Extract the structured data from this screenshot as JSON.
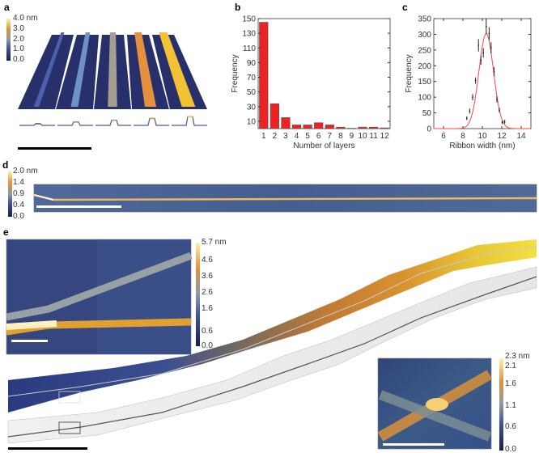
{
  "panels": {
    "a": {
      "label": "a",
      "colorbar": [
        "4.0 nm",
        "3.0",
        "2.0",
        "1.0",
        "0.0"
      ],
      "ribbon_colors": [
        "#4f5fb0",
        "#6f92c4",
        "#a59d92",
        "#e4903c",
        "#f2c232"
      ]
    },
    "b": {
      "label": "b"
    },
    "c": {
      "label": "c"
    },
    "d": {
      "label": "d",
      "colorbar": [
        "2.0 nm",
        "1.4",
        "0.9",
        "0.4",
        "0.0"
      ]
    },
    "e": {
      "label": "e",
      "colorbar_main": [
        "5.7 nm",
        "4.6",
        "3.6",
        "2.6",
        "1.6",
        "0.6",
        "0.0"
      ],
      "colorbar_inset": [
        "2.3 nm",
        "2.1",
        "1.6",
        "1.1",
        "0.6",
        "0.0"
      ]
    }
  },
  "colors": {
    "bar": "#ee2222",
    "fit": "#ff4444",
    "navy": "#2b3566",
    "orange": "#d98a2e",
    "yellow": "#f0d230"
  },
  "chart_data": [
    {
      "type": "bar",
      "panel": "b",
      "categories": [
        "1",
        "2",
        "3",
        "4",
        "5",
        "6",
        "7",
        "8",
        "9",
        "10",
        "11",
        "12"
      ],
      "values": [
        145,
        34,
        15,
        5,
        5,
        8,
        5,
        2,
        0.5,
        2,
        2,
        1
      ],
      "xlabel": "Number of layers",
      "ylabel": "Frequency",
      "ylim": [
        0,
        150
      ],
      "yticks": [
        "10",
        "30",
        "50",
        "70",
        "90",
        "110",
        "130",
        "150"
      ]
    },
    {
      "type": "scatter",
      "panel": "c",
      "xlabel": "Ribbon width (nm)",
      "ylabel": "Frequency",
      "xlim": [
        5,
        15
      ],
      "ylim": [
        0,
        350
      ],
      "xticks": [
        "6",
        "8",
        "10",
        "12",
        "14"
      ],
      "yticks": [
        "0",
        "50",
        "100",
        "150",
        "200",
        "250",
        "300",
        "350"
      ],
      "points": [
        {
          "x": 8.4,
          "y": 33,
          "err": 6
        },
        {
          "x": 8.7,
          "y": 56,
          "err": 8
        },
        {
          "x": 9.0,
          "y": 100,
          "err": 10
        },
        {
          "x": 9.3,
          "y": 153,
          "err": 10
        },
        {
          "x": 9.6,
          "y": 265,
          "err": 20
        },
        {
          "x": 9.85,
          "y": 218,
          "err": 15
        },
        {
          "x": 10.1,
          "y": 241,
          "err": 15
        },
        {
          "x": 10.4,
          "y": 325,
          "err": 25
        },
        {
          "x": 10.7,
          "y": 302,
          "err": 20
        },
        {
          "x": 10.9,
          "y": 257,
          "err": 18
        },
        {
          "x": 11.2,
          "y": 181,
          "err": 15
        },
        {
          "x": 11.5,
          "y": 93,
          "err": 10
        },
        {
          "x": 11.75,
          "y": 59,
          "err": 8
        },
        {
          "x": 12.05,
          "y": 20,
          "err": 6
        },
        {
          "x": 12.3,
          "y": 22,
          "err": 6
        }
      ],
      "fit": {
        "type": "gaussian",
        "mean": 10.4,
        "sigma": 0.75,
        "amplitude": 302
      }
    }
  ]
}
